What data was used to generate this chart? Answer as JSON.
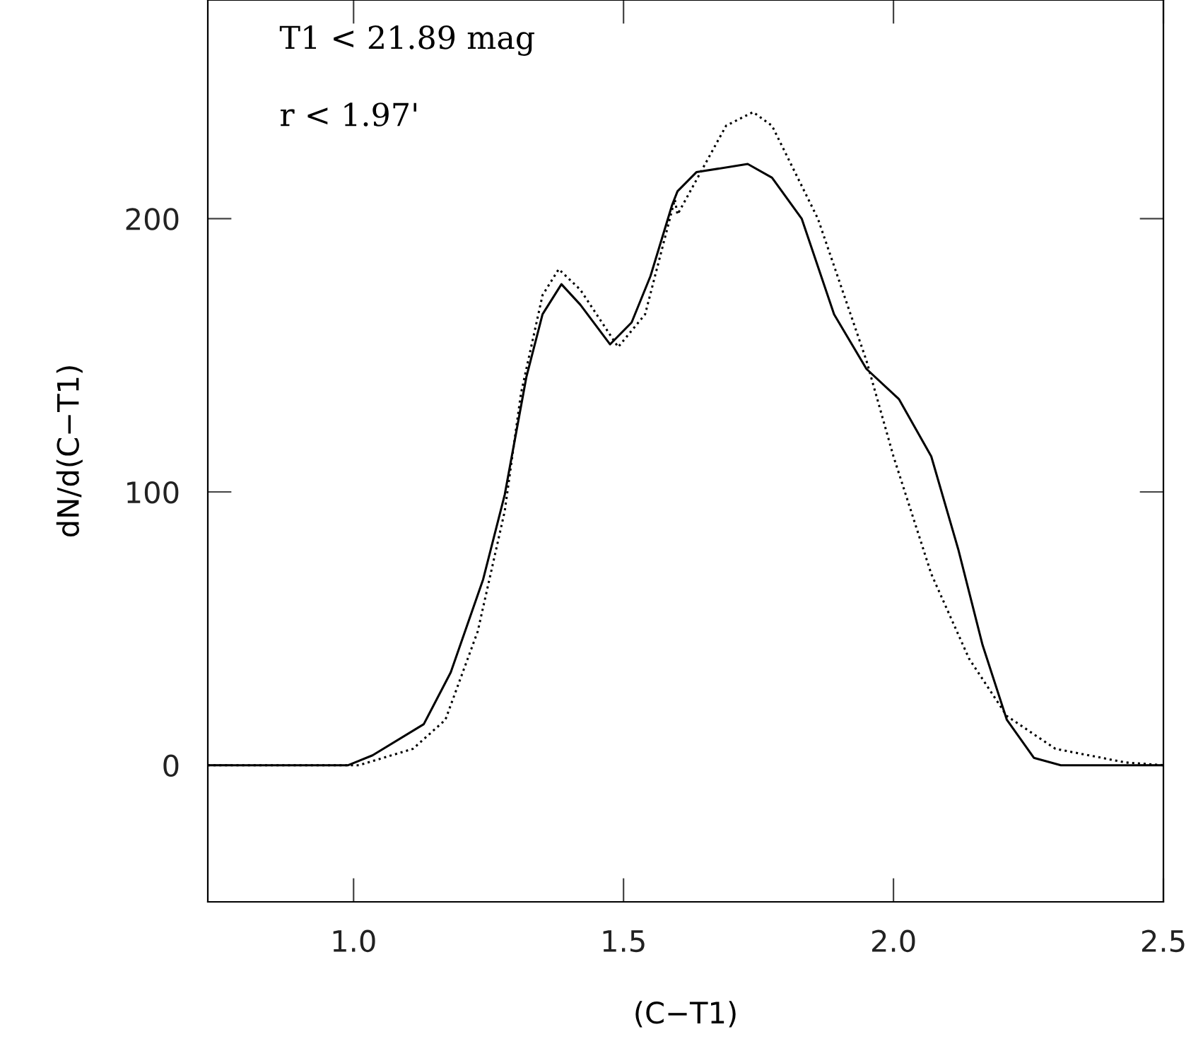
{
  "chart_data": {
    "type": "line",
    "xlabel": "(C−T1)",
    "ylabel": "dN/d(C−T1)",
    "annotations": [
      "T1 < 21.89 mag",
      "r < 1.97'"
    ],
    "xlim": [
      0.73,
      2.5
    ],
    "xticks": [
      {
        "value": 1.0,
        "label": "1.0"
      },
      1.5,
      {
        "value": 2.0,
        "label": "2.0"
      },
      2.5
    ],
    "ylim": [
      -50,
      280
    ],
    "yticks": [
      0,
      100,
      200
    ],
    "grid": false,
    "legend": false,
    "marker": "none",
    "series": [
      {
        "color": "#000000",
        "line_style": "solid",
        "x": [
          0.73,
          0.99,
          1.035,
          1.13,
          1.18,
          1.24,
          1.28,
          1.32,
          1.35,
          1.385,
          1.42,
          1.475,
          1.515,
          1.55,
          1.59,
          1.6,
          1.635,
          1.73,
          1.775,
          1.83,
          1.89,
          1.95,
          2.01,
          2.07,
          2.12,
          2.165,
          2.21,
          2.26,
          2.31,
          2.5
        ],
        "values": [
          0,
          0,
          3.6,
          15,
          34,
          68,
          99,
          142,
          165,
          176,
          168.5,
          154,
          162,
          179,
          205,
          210,
          217,
          220,
          215,
          200,
          165,
          145,
          134,
          113,
          79,
          44,
          16.6,
          2.7,
          0,
          0
        ]
      },
      {
        "color": "#000000",
        "line_style": "dotted",
        "x": [
          0.73,
          1.01,
          1.11,
          1.17,
          1.23,
          1.28,
          1.31,
          1.35,
          1.38,
          1.42,
          1.49,
          1.54,
          1.595,
          1.6,
          1.69,
          1.74,
          1.775,
          1.86,
          1.95,
          2.0,
          2.07,
          2.14,
          2.21,
          2.3,
          2.43,
          2.5
        ],
        "values": [
          0,
          0,
          6,
          16.6,
          49,
          93,
          136,
          172,
          181.5,
          174,
          153,
          165,
          207,
          201.5,
          234,
          239,
          234,
          200,
          148,
          113,
          70,
          39,
          18,
          6,
          1,
          0
        ]
      }
    ]
  }
}
